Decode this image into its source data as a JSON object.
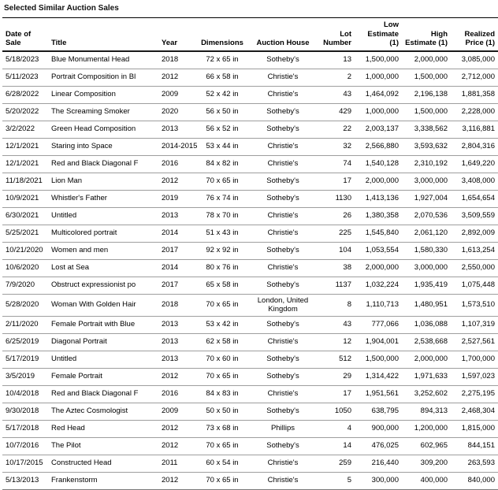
{
  "page_title": "Selected Similar Auction Sales",
  "table": {
    "columns": [
      {
        "label": "Date of Sale"
      },
      {
        "label": "Title"
      },
      {
        "label": "Year"
      },
      {
        "label": "Dimensions"
      },
      {
        "label": "Auction House"
      },
      {
        "label": "Lot Number"
      },
      {
        "label": "Low Estimate (1)"
      },
      {
        "label": "High Estimate (1)"
      },
      {
        "label": "Realized Price (1)"
      }
    ],
    "rows": [
      {
        "date": "5/18/2023",
        "title": "Blue Monumental Head",
        "year": "2018",
        "dims": "72 x 65 in",
        "house": "Sotheby's",
        "lot": "13",
        "low": "1,500,000",
        "high": "2,000,000",
        "realized": "3,085,000"
      },
      {
        "date": "5/11/2023",
        "title": "Portrait Composition in Bl",
        "year": "2012",
        "dims": "66 x 58 in",
        "house": "Christie's",
        "lot": "2",
        "low": "1,000,000",
        "high": "1,500,000",
        "realized": "2,712,000"
      },
      {
        "date": "6/28/2022",
        "title": "Linear Composition",
        "year": "2009",
        "dims": "52 x 42 in",
        "house": "Christie's",
        "lot": "43",
        "low": "1,464,092",
        "high": "2,196,138",
        "realized": "1,881,358"
      },
      {
        "date": "5/20/2022",
        "title": "The Screaming Smoker",
        "year": "2020",
        "dims": "56 x 50 in",
        "house": "Sotheby's",
        "lot": "429",
        "low": "1,000,000",
        "high": "1,500,000",
        "realized": "2,228,000"
      },
      {
        "date": "3/2/2022",
        "title": "Green Head Composition",
        "year": "2013",
        "dims": "56 x 52 in",
        "house": "Sotheby's",
        "lot": "22",
        "low": "2,003,137",
        "high": "3,338,562",
        "realized": "3,116,881"
      },
      {
        "date": "12/1/2021",
        "title": "Staring into Space",
        "year": "2014-2015",
        "dims": "53 x 44 in",
        "house": "Christie's",
        "lot": "32",
        "low": "2,566,880",
        "high": "3,593,632",
        "realized": "2,804,316"
      },
      {
        "date": "12/1/2021",
        "title": "Red and Black Diagonal F",
        "year": "2016",
        "dims": "84 x 82 in",
        "house": "Christie's",
        "lot": "74",
        "low": "1,540,128",
        "high": "2,310,192",
        "realized": "1,649,220"
      },
      {
        "date": "11/18/2021",
        "title": "Lion Man",
        "year": "2012",
        "dims": "70 x 65 in",
        "house": "Sotheby's",
        "lot": "17",
        "low": "2,000,000",
        "high": "3,000,000",
        "realized": "3,408,000"
      },
      {
        "date": "10/9/2021",
        "title": "Whistler's Father",
        "year": "2019",
        "dims": "76 x 74 in",
        "house": "Sotheby's",
        "lot": "1130",
        "low": "1,413,136",
        "high": "1,927,004",
        "realized": "1,654,654"
      },
      {
        "date": "6/30/2021",
        "title": "Untitled",
        "year": "2013",
        "dims": "78 x 70 in",
        "house": "Christie's",
        "lot": "26",
        "low": "1,380,358",
        "high": "2,070,536",
        "realized": "3,509,559"
      },
      {
        "date": "5/25/2021",
        "title": "Multicolored portrait",
        "year": "2014",
        "dims": "51 x 43 in",
        "house": "Christie's",
        "lot": "225",
        "low": "1,545,840",
        "high": "2,061,120",
        "realized": "2,892,009"
      },
      {
        "date": "10/21/2020",
        "title": "Women and men",
        "year": "2017",
        "dims": "92 x 92 in",
        "house": "Sotheby's",
        "lot": "104",
        "low": "1,053,554",
        "high": "1,580,330",
        "realized": "1,613,254"
      },
      {
        "date": "10/6/2020",
        "title": "Lost at Sea",
        "year": "2014",
        "dims": "80 x 76 in",
        "house": "Christie's",
        "lot": "38",
        "low": "2,000,000",
        "high": "3,000,000",
        "realized": "2,550,000"
      },
      {
        "date": "7/9/2020",
        "title": "Obstruct expressionist po",
        "year": "2017",
        "dims": "65 x 58 in",
        "house": "Sotheby's",
        "lot": "1137",
        "low": "1,032,224",
        "high": "1,935,419",
        "realized": "1,075,448"
      },
      {
        "date": "5/28/2020",
        "title": "Woman With Golden Hair",
        "year": "2018",
        "dims": "70 x 65 in",
        "house": "London, United Kingdom",
        "lot": "8",
        "low": "1,110,713",
        "high": "1,480,951",
        "realized": "1,573,510"
      },
      {
        "date": "2/11/2020",
        "title": "Female Portrait with Blue",
        "year": "2013",
        "dims": "53 x 42 in",
        "house": "Sotheby's",
        "lot": "43",
        "low": "777,066",
        "high": "1,036,088",
        "realized": "1,107,319"
      },
      {
        "date": "6/25/2019",
        "title": "Diagonal Portrait",
        "year": "2013",
        "dims": "62 x 58 in",
        "house": "Christie's",
        "lot": "12",
        "low": "1,904,001",
        "high": "2,538,668",
        "realized": "2,527,561"
      },
      {
        "date": "5/17/2019",
        "title": "Untitled",
        "year": "2013",
        "dims": "70 x 60 in",
        "house": "Sotheby's",
        "lot": "512",
        "low": "1,500,000",
        "high": "2,000,000",
        "realized": "1,700,000"
      },
      {
        "date": "3/5/2019",
        "title": "Female Portrait",
        "year": "2012",
        "dims": "70 x 65 in",
        "house": "Sotheby's",
        "lot": "29",
        "low": "1,314,422",
        "high": "1,971,633",
        "realized": "1,597,023"
      },
      {
        "date": "10/4/2018",
        "title": "Red and Black Diagonal F",
        "year": "2016",
        "dims": "84 x 83 in",
        "house": "Christie's",
        "lot": "17",
        "low": "1,951,561",
        "high": "3,252,602",
        "realized": "2,275,195"
      },
      {
        "date": "9/30/2018",
        "title": "The Aztec Cosmologist",
        "year": "2009",
        "dims": "50 x 50 in",
        "house": "Sotheby's",
        "lot": "1050",
        "low": "638,795",
        "high": "894,313",
        "realized": "2,468,304"
      },
      {
        "date": "5/17/2018",
        "title": "Red Head",
        "year": "2012",
        "dims": "73 x 68 in",
        "house": "Phillips",
        "lot": "4",
        "low": "900,000",
        "high": "1,200,000",
        "realized": "1,815,000"
      },
      {
        "date": "10/7/2016",
        "title": "The Pilot",
        "year": "2012",
        "dims": "70 x 65 in",
        "house": "Sotheby's",
        "lot": "14",
        "low": "476,025",
        "high": "602,965",
        "realized": "844,151"
      },
      {
        "date": "10/17/2015",
        "title": "Constructed Head",
        "year": "2011",
        "dims": "60 x 54 in",
        "house": "Christie's",
        "lot": "259",
        "low": "216,440",
        "high": "309,200",
        "realized": "263,593"
      },
      {
        "date": "5/13/2013",
        "title": "Frankenstorm",
        "year": "2012",
        "dims": "70 x 65 in",
        "house": "Christie's",
        "lot": "5",
        "low": "300,000",
        "high": "400,000",
        "realized": "840,000"
      }
    ]
  }
}
